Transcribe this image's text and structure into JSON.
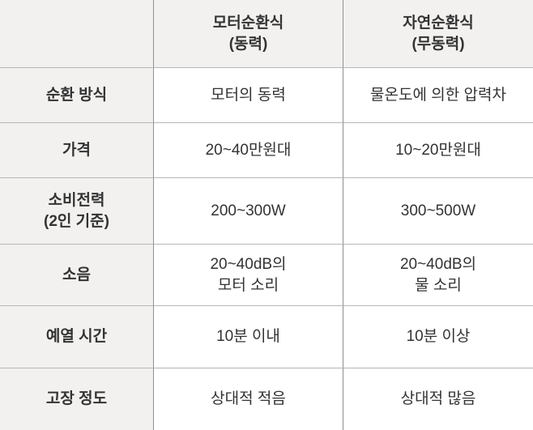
{
  "table": {
    "header": {
      "corner": "",
      "col_motor": "모터순환식\n(동력)",
      "col_natural": "자연순환식\n(무동력)"
    },
    "rows": [
      {
        "label": "순환 방식",
        "cells": [
          "모터의 동력",
          "물온도에 의한 압력차"
        ]
      },
      {
        "label": "가격",
        "cells": [
          "20~40만원대",
          "10~20만원대"
        ]
      },
      {
        "label": "소비전력\n(2인 기준)",
        "cells": [
          "200~300W",
          "300~500W"
        ]
      },
      {
        "label": "소음",
        "cells": [
          "20~40dB의\n모터 소리",
          "20~40dB의\n물 소리"
        ]
      },
      {
        "label": "예열 시간",
        "cells": [
          "10분 이내",
          "10분 이상"
        ]
      },
      {
        "label": "고장 정도",
        "cells": [
          "상대적 적음",
          "상대적 많음"
        ]
      }
    ]
  },
  "colors": {
    "header_bg": "#f2f1ef",
    "label_bg": "#f2f1ef",
    "cell_bg": "#ffffff",
    "border_horizontal": "#b7b7b7",
    "border_vertical": "#8f8f8f",
    "text": "#333333"
  }
}
